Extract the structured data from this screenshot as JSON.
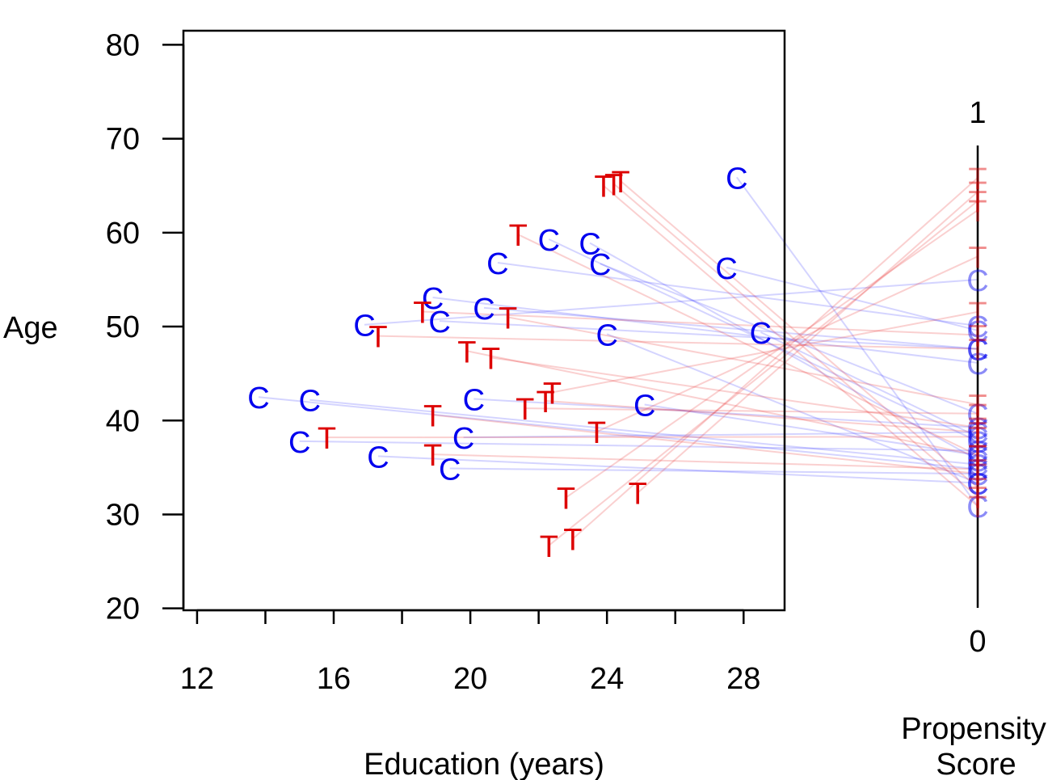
{
  "chart_data": {
    "type": "scatter",
    "title": "",
    "xlabel": "Education (years)",
    "ylabel": "Age",
    "xlim": [
      11.6,
      29.2
    ],
    "ylim": [
      19.8,
      81.5
    ],
    "x_ticks": [
      12,
      14,
      16,
      18,
      20,
      22,
      24,
      26,
      28
    ],
    "x_tick_labels": [
      "12",
      "16",
      "20",
      "24",
      "28"
    ],
    "x_tick_label_values": [
      12,
      16,
      20,
      24,
      28
    ],
    "y_ticks": [
      20,
      30,
      40,
      50,
      60,
      70,
      80
    ],
    "y_tick_labels": [
      "20",
      "30",
      "40",
      "50",
      "60",
      "70",
      "80"
    ],
    "grid": false,
    "side_axis": {
      "title_line1": "Propensity",
      "title_line2": "Score",
      "top_label": "1",
      "bottom_label": "0",
      "range": [
        0,
        1
      ]
    },
    "colors": {
      "control": "#0000ee",
      "treated": "#dd0000",
      "control_line": "rgba(60,60,255,0.22)",
      "treated_line": "rgba(230,40,40,0.22)",
      "axis": "#000000"
    },
    "series": [
      {
        "name": "C",
        "marker": "C",
        "points": [
          {
            "x": 13.8,
            "y": 42.5,
            "score": 0.3
          },
          {
            "x": 15.3,
            "y": 42.2,
            "score": 0.31
          },
          {
            "x": 15.0,
            "y": 37.8,
            "score": 0.34
          },
          {
            "x": 16.9,
            "y": 50.2,
            "score": 0.71
          },
          {
            "x": 17.3,
            "y": 36.2,
            "score": 0.27
          },
          {
            "x": 18.9,
            "y": 53.1,
            "score": 0.53
          },
          {
            "x": 19.1,
            "y": 50.6,
            "score": 0.56
          },
          {
            "x": 19.4,
            "y": 34.9,
            "score": 0.29
          },
          {
            "x": 19.8,
            "y": 38.2,
            "score": 0.38
          },
          {
            "x": 20.1,
            "y": 42.3,
            "score": 0.39
          },
          {
            "x": 20.4,
            "y": 52.0,
            "score": 0.56
          },
          {
            "x": 20.8,
            "y": 56.8,
            "score": 0.61
          },
          {
            "x": 22.3,
            "y": 59.3,
            "score": 0.36
          },
          {
            "x": 23.5,
            "y": 58.9,
            "score": 0.32
          },
          {
            "x": 23.8,
            "y": 56.7,
            "score": 0.42
          },
          {
            "x": 24.0,
            "y": 49.2,
            "score": 0.27
          },
          {
            "x": 25.1,
            "y": 41.7,
            "score": 0.33
          },
          {
            "x": 27.5,
            "y": 56.3,
            "score": 0.6
          },
          {
            "x": 27.8,
            "y": 65.9,
            "score": 0.22
          },
          {
            "x": 28.5,
            "y": 49.4,
            "score": 0.37
          }
        ]
      },
      {
        "name": "T",
        "marker": "T",
        "points": [
          {
            "x": 15.8,
            "y": 38.2,
            "score": 0.37
          },
          {
            "x": 17.3,
            "y": 49.0,
            "score": 0.56
          },
          {
            "x": 18.6,
            "y": 51.6,
            "score": 0.59
          },
          {
            "x": 18.9,
            "y": 40.6,
            "score": 0.29
          },
          {
            "x": 18.9,
            "y": 36.4,
            "score": 0.3
          },
          {
            "x": 19.9,
            "y": 47.4,
            "score": 0.33
          },
          {
            "x": 20.6,
            "y": 46.7,
            "score": 0.39
          },
          {
            "x": 21.1,
            "y": 51.0,
            "score": 0.44
          },
          {
            "x": 21.4,
            "y": 59.8,
            "score": 0.33
          },
          {
            "x": 21.6,
            "y": 41.3,
            "score": 0.42
          },
          {
            "x": 22.2,
            "y": 42.1,
            "score": 0.38
          },
          {
            "x": 22.4,
            "y": 43.0,
            "score": 0.64
          },
          {
            "x": 22.3,
            "y": 26.7,
            "score": 0.88
          },
          {
            "x": 22.8,
            "y": 31.8,
            "score": 0.86
          },
          {
            "x": 23.0,
            "y": 27.4,
            "score": 0.93
          },
          {
            "x": 23.7,
            "y": 38.8,
            "score": 0.76
          },
          {
            "x": 23.9,
            "y": 65.0,
            "score": 0.22
          },
          {
            "x": 24.2,
            "y": 65.2,
            "score": 0.24
          },
          {
            "x": 24.4,
            "y": 65.5,
            "score": 0.26
          },
          {
            "x": 24.9,
            "y": 32.3,
            "score": 0.9
          }
        ]
      }
    ]
  }
}
